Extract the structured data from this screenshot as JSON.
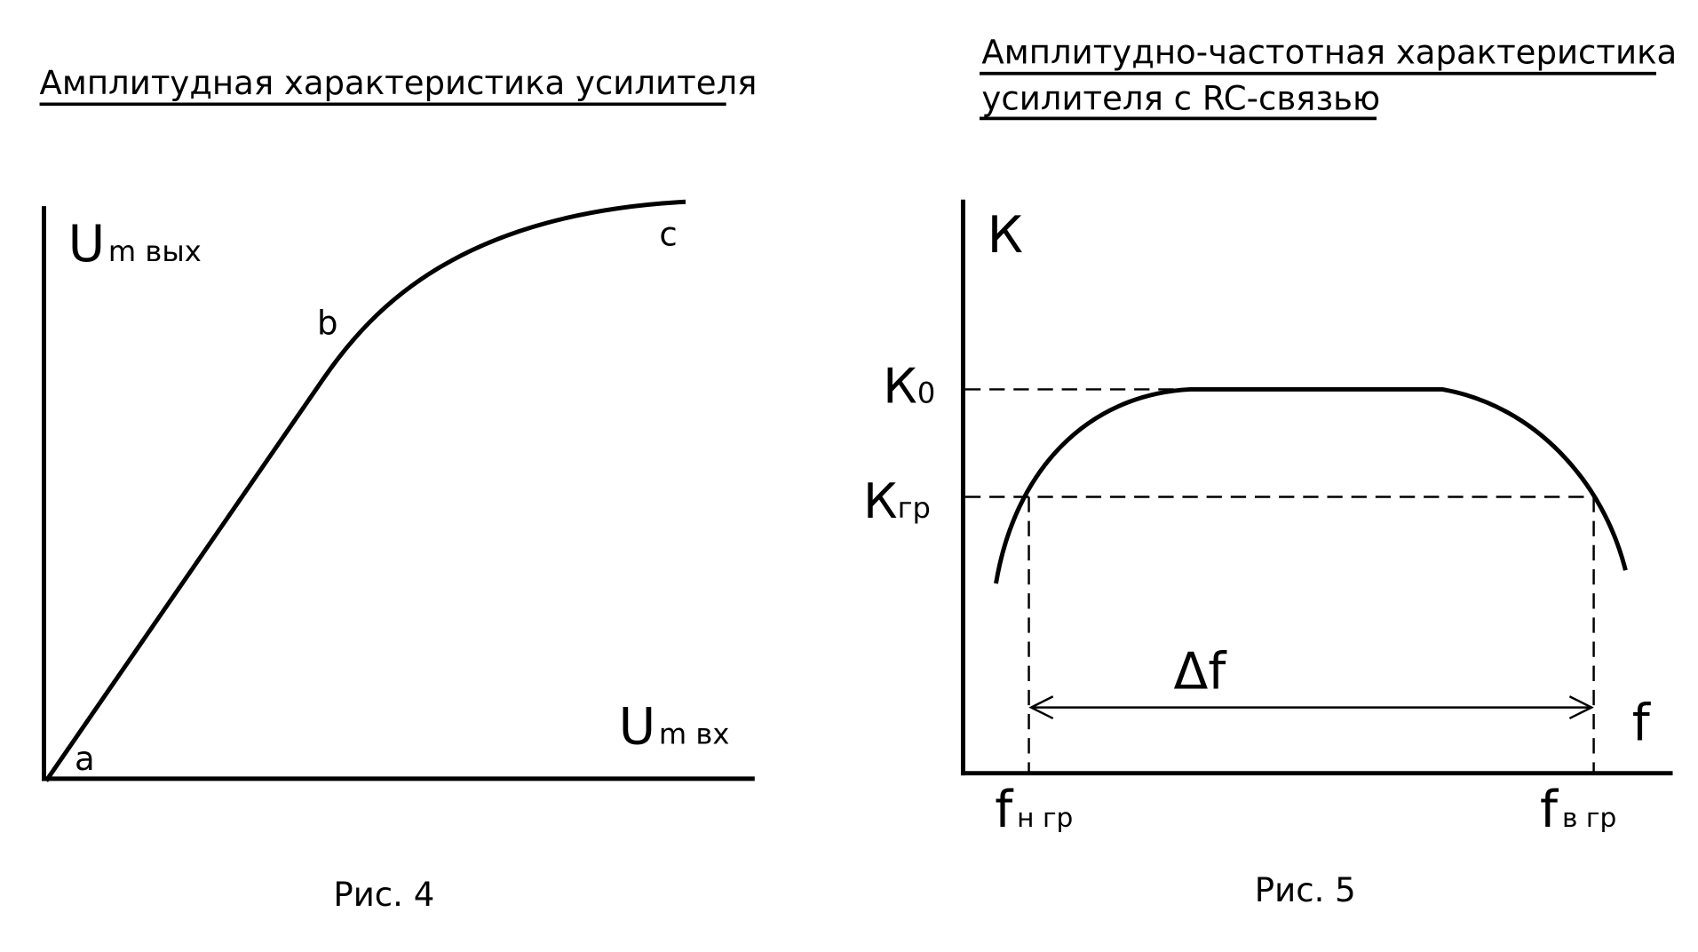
{
  "figures": [
    {
      "title": "Амплитудная характеристика усилителя",
      "y_axis_label": {
        "main": "U",
        "sub": "m вых"
      },
      "x_axis_label": {
        "main": "U",
        "sub": "m вх"
      },
      "points": [
        "a",
        "b",
        "c"
      ],
      "caption": "Рис. 4"
    },
    {
      "title_lines": [
        "Амплитудно-частотная характеристика",
        "усилителя с RC-связью"
      ],
      "y_axis_label": "К",
      "x_axis_label": "f",
      "levels": [
        {
          "main": "К",
          "sub": "0"
        },
        {
          "main": "К",
          "sub": "гр"
        }
      ],
      "band_label": "Δf",
      "frequencies": [
        {
          "main": "f",
          "sub": "н гр"
        },
        {
          "main": "f",
          "sub": "в гр"
        }
      ],
      "caption": "Рис. 5"
    }
  ]
}
